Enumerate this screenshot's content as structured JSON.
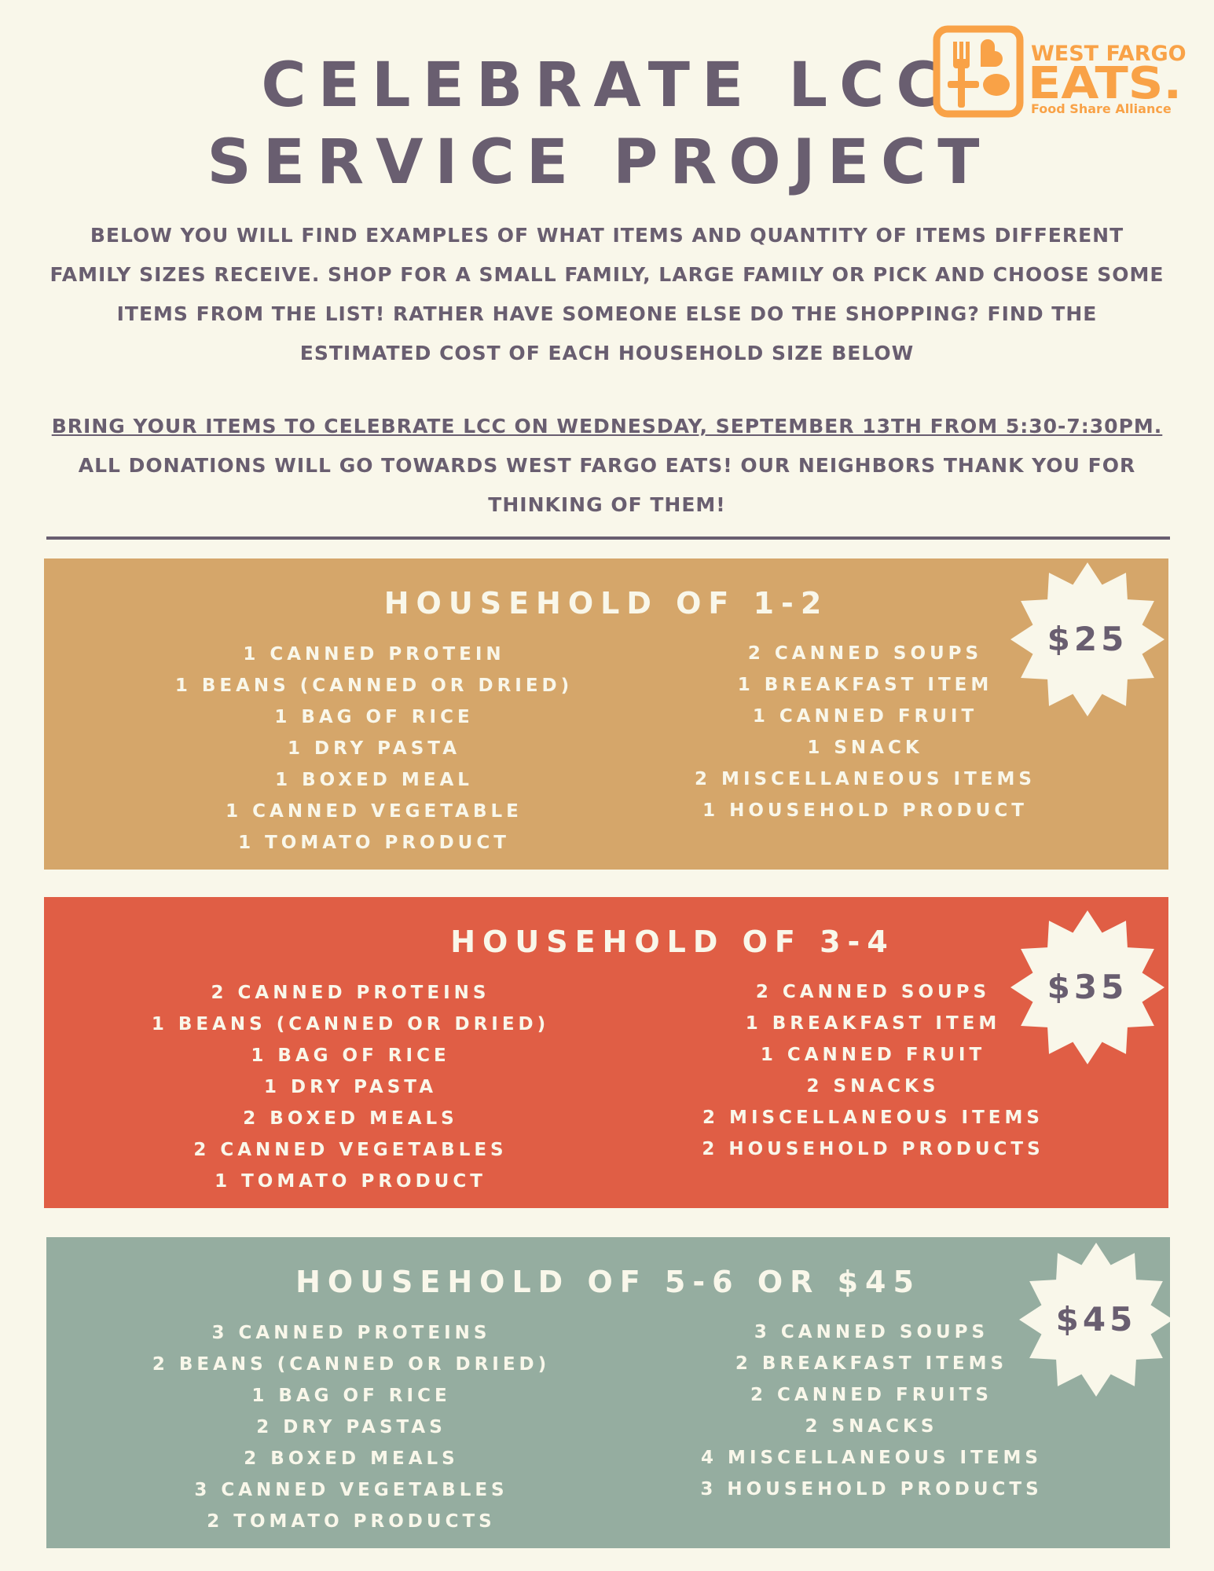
{
  "title": {
    "line1": "CELEBRATE LCC",
    "line2": "SERVICE PROJECT"
  },
  "logo": {
    "line1": "WEST FARGO",
    "line2": "EATS.",
    "line3": "Food Share Alliance",
    "color": "#F9A247",
    "icon": "fork-spoon-heart-icon"
  },
  "intro": "BELOW YOU WILL FIND EXAMPLES OF WHAT ITEMS AND QUANTITY OF ITEMS DIFFERENT FAMILY SIZES RECEIVE. SHOP FOR A SMALL FAMILY, LARGE FAMILY OR PICK AND CHOOSE SOME ITEMS FROM THE LIST! RATHER HAVE SOMEONE ELSE DO THE SHOPPING? FIND THE ESTIMATED COST OF EACH HOUSEHOLD SIZE BELOW",
  "event": {
    "underlined": "BRING YOUR ITEMS TO CELEBRATE LCC ON WEDNESDAY, SEPTEMBER 13TH FROM 5:30-7:30PM.",
    "rest": " ALL DONATIONS WILL GO TOWARDS WEST FARGO EATS! OUR NEIGHBORS THANK YOU FOR THINKING OF THEM!"
  },
  "households": [
    {
      "heading": "HOUSEHOLD OF 1-2",
      "price": "$25",
      "color": "#D5A66A",
      "left": [
        "1 CANNED PROTEIN",
        "1 BEANS (CANNED OR DRIED)",
        "1 BAG OF RICE",
        "1 DRY PASTA",
        "1 BOXED MEAL",
        "1 CANNED VEGETABLE",
        "1 TOMATO PRODUCT"
      ],
      "right": [
        "2 CANNED SOUPS",
        "1 BREAKFAST ITEM",
        "1 CANNED FRUIT",
        "1 SNACK",
        "2 MISCELLANEOUS ITEMS",
        "1 HOUSEHOLD PRODUCT"
      ]
    },
    {
      "heading": "HOUSEHOLD OF 3-4",
      "price": "$35",
      "color": "#E05E45",
      "left": [
        "2 CANNED PROTEINS",
        "1 BEANS (CANNED OR DRIED)",
        "1 BAG OF RICE",
        "1 DRY PASTA",
        "2 BOXED MEALS",
        "2 CANNED VEGETABLES",
        "1 TOMATO PRODUCT"
      ],
      "right": [
        "2 CANNED SOUPS",
        "1 BREAKFAST ITEM",
        "1 CANNED FRUIT",
        "2 SNACKS",
        "2 MISCELLANEOUS ITEMS",
        "2 HOUSEHOLD PRODUCTS"
      ]
    },
    {
      "heading": "HOUSEHOLD OF 5-6 OR $45",
      "price": "$45",
      "color": "#95ADA0",
      "left": [
        "3 CANNED PROTEINS",
        "2 BEANS (CANNED OR DRIED)",
        "1 BAG OF RICE",
        "2 DRY PASTAS",
        "2 BOXED MEALS",
        "3 CANNED VEGETABLES",
        "2 TOMATO PRODUCTS"
      ],
      "right": [
        "3 CANNED SOUPS",
        "2 BREAKFAST ITEMS",
        "2 CANNED FRUITS",
        "2 SNACKS",
        "4 MISCELLANEOUS ITEMS",
        "3 HOUSEHOLD PRODUCTS"
      ]
    }
  ]
}
